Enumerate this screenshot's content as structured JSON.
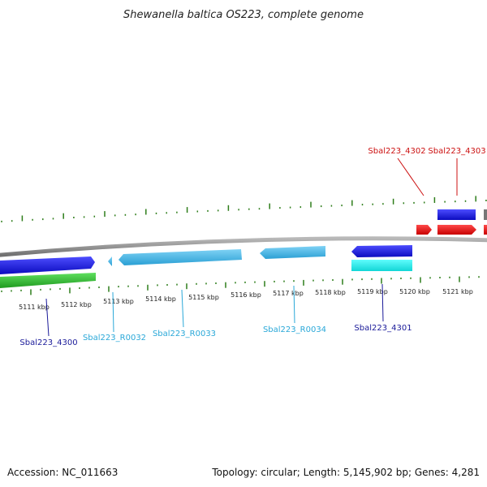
{
  "title": "Shewanella baltica OS223, complete genome",
  "footer": {
    "accession": "Accession: NC_011663",
    "summary": "Topology: circular; Length: 5,145,902 bp; Genes: 4,281"
  },
  "colors": {
    "backbone": "#8a8a8a",
    "tick": "#2e7d1a",
    "gene_cds_dark": "#1a1ae6",
    "gene_rna": "#3ab7ea",
    "gene_cyan": "#17f0f0",
    "gene_red": "#ee1111",
    "gene_green": "#33c433",
    "label_darkblue": "#1a1a99",
    "label_cyan": "#2aa8d8",
    "label_red": "#cc1111"
  },
  "scale": {
    "unit": "kbp",
    "labels": [
      "5111 kbp",
      "5112 kbp",
      "5113 kbp",
      "5114 kbp",
      "5115 kbp",
      "5116 kbp",
      "5117 kbp",
      "5118 kbp",
      "5119 kbp",
      "5120 kbp",
      "5121 kbp"
    ]
  },
  "features": [
    {
      "id": "Sbal223_4300",
      "label": "Sbal223_4300",
      "type": "CDS",
      "strand": "+",
      "color": "dark_blue"
    },
    {
      "id": "Sbal223_R0032",
      "label": "Sbal223_R0032",
      "type": "RNA",
      "strand": "-",
      "color": "light_blue"
    },
    {
      "id": "Sbal223_R0033",
      "label": "Sbal223_R0033",
      "type": "RNA",
      "strand": "-",
      "color": "light_blue"
    },
    {
      "id": "Sbal223_R0034",
      "label": "Sbal223_R0034",
      "type": "RNA",
      "strand": "-",
      "color": "light_blue"
    },
    {
      "id": "Sbal223_4301",
      "label": "Sbal223_4301",
      "type": "CDS",
      "strand": "-",
      "color": "dark_blue"
    },
    {
      "id": "Sbal223_4302",
      "label": "Sbal223_4302",
      "type": "CDS",
      "strand": "+",
      "color": "red"
    },
    {
      "id": "Sbal223_4303",
      "label": "Sbal223_4303",
      "type": "CDS",
      "strand": "+",
      "color": "red"
    }
  ]
}
